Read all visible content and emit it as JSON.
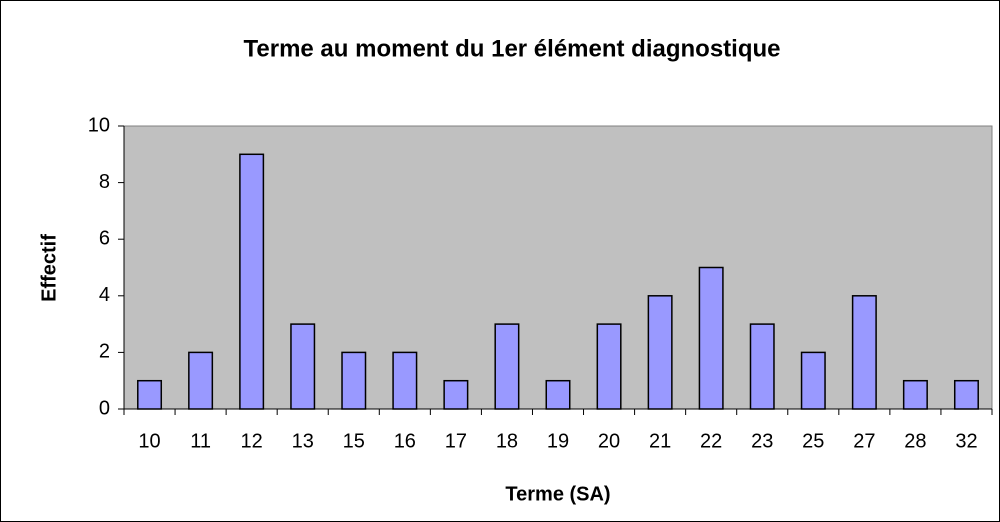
{
  "chart_data": {
    "type": "bar",
    "title": "Terme au moment du 1er élément diagnostique",
    "x_label": "Terme (SA)",
    "y_label": "Effectif",
    "categories": [
      "10",
      "11",
      "12",
      "13",
      "15",
      "16",
      "17",
      "18",
      "19",
      "20",
      "21",
      "22",
      "23",
      "25",
      "27",
      "28",
      "32"
    ],
    "values": [
      1,
      2,
      9,
      3,
      2,
      2,
      1,
      3,
      1,
      3,
      4,
      5,
      3,
      2,
      4,
      1,
      1
    ],
    "color": "#9999ff",
    "plot_background": "#c0c0c0",
    "ylim": [
      0,
      10
    ],
    "yticks": [
      0,
      2,
      4,
      6,
      8,
      10
    ],
    "grid": false
  }
}
